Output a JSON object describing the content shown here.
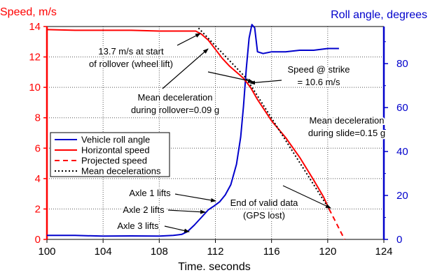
{
  "chart_data": {
    "type": "line",
    "xlabel": "Time. seconds",
    "y_left_label": "Speed, m/s",
    "y_right_label": "Roll angle, degrees",
    "xlim": [
      100,
      124
    ],
    "x_ticks": [
      100,
      104,
      108,
      112,
      116,
      120,
      124
    ],
    "y_left_lim": [
      0,
      14
    ],
    "y_left_ticks": [
      0,
      2,
      4,
      6,
      8,
      10,
      12,
      14
    ],
    "y_right_lim": [
      0,
      96.9
    ],
    "y_right_ticks": [
      0,
      20,
      40,
      60,
      80
    ],
    "grid": true,
    "legend_position": "lower-left",
    "colors": {
      "speed": "#ff0000",
      "roll": "#0000cc",
      "projected": "#ff0000",
      "mean": "#000000",
      "left_axis": "#ff0000",
      "right_axis": "#0000cc"
    },
    "series": [
      {
        "name": "Vehicle roll angle",
        "axis": "right",
        "style": "solid",
        "color": "#0000cc",
        "points": [
          [
            100.0,
            1.8
          ],
          [
            102,
            1.8
          ],
          [
            104,
            1.5
          ],
          [
            106,
            1.6
          ],
          [
            108,
            1.5
          ],
          [
            109,
            1.8
          ],
          [
            109.6,
            2.3
          ],
          [
            110,
            3.5
          ],
          [
            110.5,
            6.5
          ],
          [
            111,
            10
          ],
          [
            111.5,
            13.5
          ],
          [
            111.9,
            15.2
          ],
          [
            112.3,
            17.1
          ],
          [
            112.7,
            20.2
          ],
          [
            113.1,
            24.9
          ],
          [
            113.5,
            34.2
          ],
          [
            113.8,
            46.6
          ],
          [
            114.0,
            60.6
          ],
          [
            114.2,
            77.7
          ],
          [
            114.4,
            91.6
          ],
          [
            114.6,
            97.8
          ],
          [
            114.8,
            96.3
          ],
          [
            115.0,
            85.4
          ],
          [
            115.4,
            84.6
          ],
          [
            116,
            85.4
          ],
          [
            117,
            85.4
          ],
          [
            118,
            86.1
          ],
          [
            119,
            86.1
          ],
          [
            120,
            86.9
          ],
          [
            120.8,
            86.9
          ]
        ]
      },
      {
        "name": "Horizontal speed",
        "axis": "left",
        "style": "solid",
        "color": "#ff0000",
        "points": [
          [
            100.0,
            13.8
          ],
          [
            102,
            13.75
          ],
          [
            104,
            13.75
          ],
          [
            106,
            13.75
          ],
          [
            108,
            13.7
          ],
          [
            110,
            13.7
          ],
          [
            110.6,
            13.7
          ],
          [
            111.0,
            13.5
          ],
          [
            111.5,
            13.1
          ],
          [
            112.0,
            12.5
          ],
          [
            112.5,
            11.9
          ],
          [
            113.0,
            11.4
          ],
          [
            113.5,
            11.0
          ],
          [
            114.0,
            10.6
          ],
          [
            114.5,
            10.0
          ],
          [
            115.0,
            9.2
          ],
          [
            116.0,
            7.8
          ],
          [
            117.0,
            6.7
          ],
          [
            118.0,
            5.4
          ],
          [
            119.0,
            3.9
          ],
          [
            119.7,
            2.8
          ],
          [
            120.1,
            2.0
          ]
        ]
      },
      {
        "name": "Projected speed",
        "axis": "left",
        "style": "dashed",
        "color": "#ff0000",
        "points": [
          [
            120.1,
            2.0
          ],
          [
            121.2,
            0.0
          ]
        ]
      },
      {
        "name": "Mean decelerations",
        "axis": "left",
        "style": "dotted",
        "color": "#000000",
        "points": [
          [
            110.8,
            13.9
          ],
          [
            114.2,
            10.6
          ],
          [
            120.1,
            2.0
          ]
        ]
      }
    ],
    "annotations": [
      {
        "text": [
          "13.7 m/s at start",
          "of rollover (wheel lift)"
        ]
      },
      {
        "text": [
          "Mean deceleration",
          "during rollover=0.09 g"
        ]
      },
      {
        "text": [
          "Speed @ strike",
          "= 10.6 m/s"
        ]
      },
      {
        "text": [
          "Mean deceleration",
          "during slide=0.15 g"
        ]
      },
      {
        "text": [
          "End of valid data",
          "(GPS lost)"
        ]
      },
      {
        "text": [
          "Axle 1 lifts"
        ]
      },
      {
        "text": [
          "Axle 2 lifts"
        ]
      },
      {
        "text": [
          "Axle 3 lifts"
        ]
      }
    ]
  }
}
